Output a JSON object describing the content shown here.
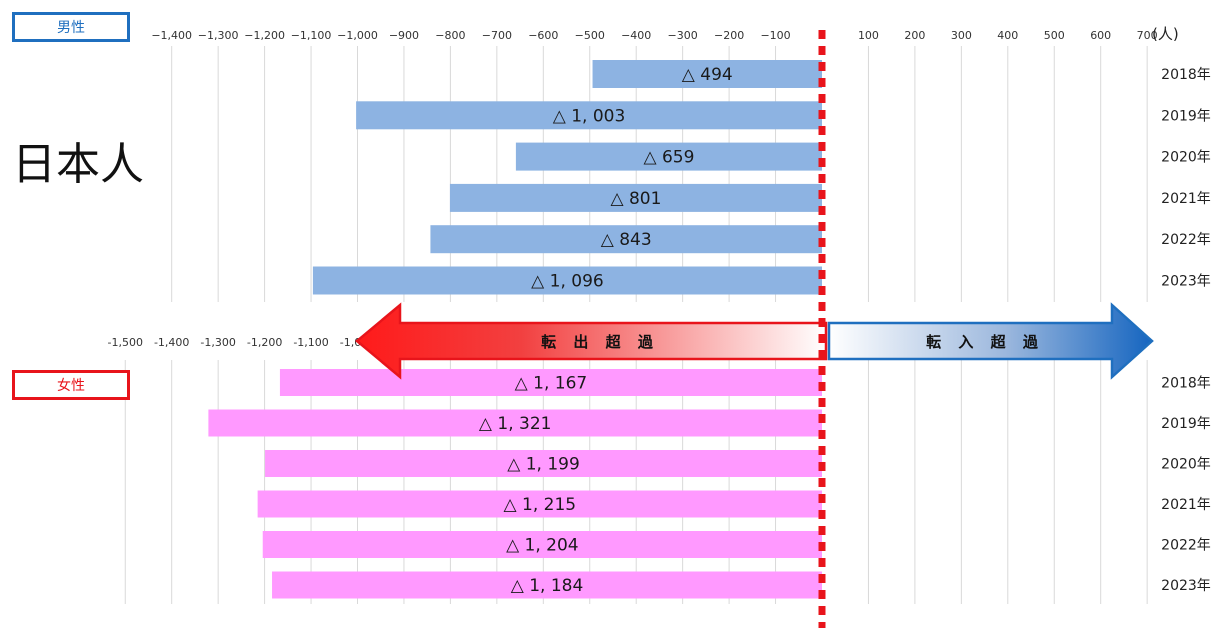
{
  "nationality_label": "日本人",
  "unit_label": "(人)",
  "arrows": {
    "out_label": "転 出 超 過",
    "in_label": "転 入 超 過"
  },
  "colors": {
    "male_bar": "#8db3e2",
    "female_bar": "#ff99ff",
    "zero_line": "#e8141b",
    "male_accent": "#1f6fbf",
    "female_accent": "#e8141b"
  },
  "chart_data": [
    {
      "type": "bar",
      "orientation": "horizontal",
      "group_label": "男性",
      "categories": [
        "2018年",
        "2019年",
        "2020年",
        "2021年",
        "2022年",
        "2023年"
      ],
      "values": [
        -494,
        -1003,
        -659,
        -801,
        -843,
        -1096
      ],
      "data_labels": [
        "△ 494",
        "△ 1, 003",
        "△ 659",
        "△ 801",
        "△ 843",
        "△ 1, 096"
      ],
      "xlim": [
        -1400,
        700
      ],
      "x_ticks": [
        -1400,
        -1300,
        -1200,
        -1100,
        -1000,
        -900,
        -800,
        -700,
        -600,
        -500,
        -400,
        -300,
        -200,
        -100,
        0,
        100,
        200,
        300,
        400,
        500,
        600,
        700
      ],
      "x_tick_labels": [
        "−1,400",
        "−1,300",
        "−1,200",
        "−1,100",
        "−1,000",
        "−900",
        "−800",
        "−700",
        "−600",
        "−500",
        "−400",
        "−300",
        "−200",
        "−100",
        "0",
        "100",
        "200",
        "300",
        "400",
        "500",
        "600",
        "700"
      ],
      "grid": true
    },
    {
      "type": "bar",
      "orientation": "horizontal",
      "group_label": "女性",
      "categories": [
        "2018年",
        "2019年",
        "2020年",
        "2021年",
        "2022年",
        "2023年"
      ],
      "values": [
        -1167,
        -1321,
        -1199,
        -1215,
        -1204,
        -1184
      ],
      "data_labels": [
        "△ 1, 167",
        "△ 1, 321",
        "△ 1, 199",
        "△ 1, 215",
        "△ 1, 204",
        "△ 1, 184"
      ],
      "xlim": [
        -1500,
        700
      ],
      "x_ticks": [
        -1500,
        -1400,
        -1300,
        -1200,
        -1100,
        -1000
      ],
      "x_tick_labels": [
        "-1,500",
        "-1,400",
        "-1,300",
        "-1,200",
        "-1,100",
        "-1,000"
      ],
      "grid": true
    }
  ]
}
